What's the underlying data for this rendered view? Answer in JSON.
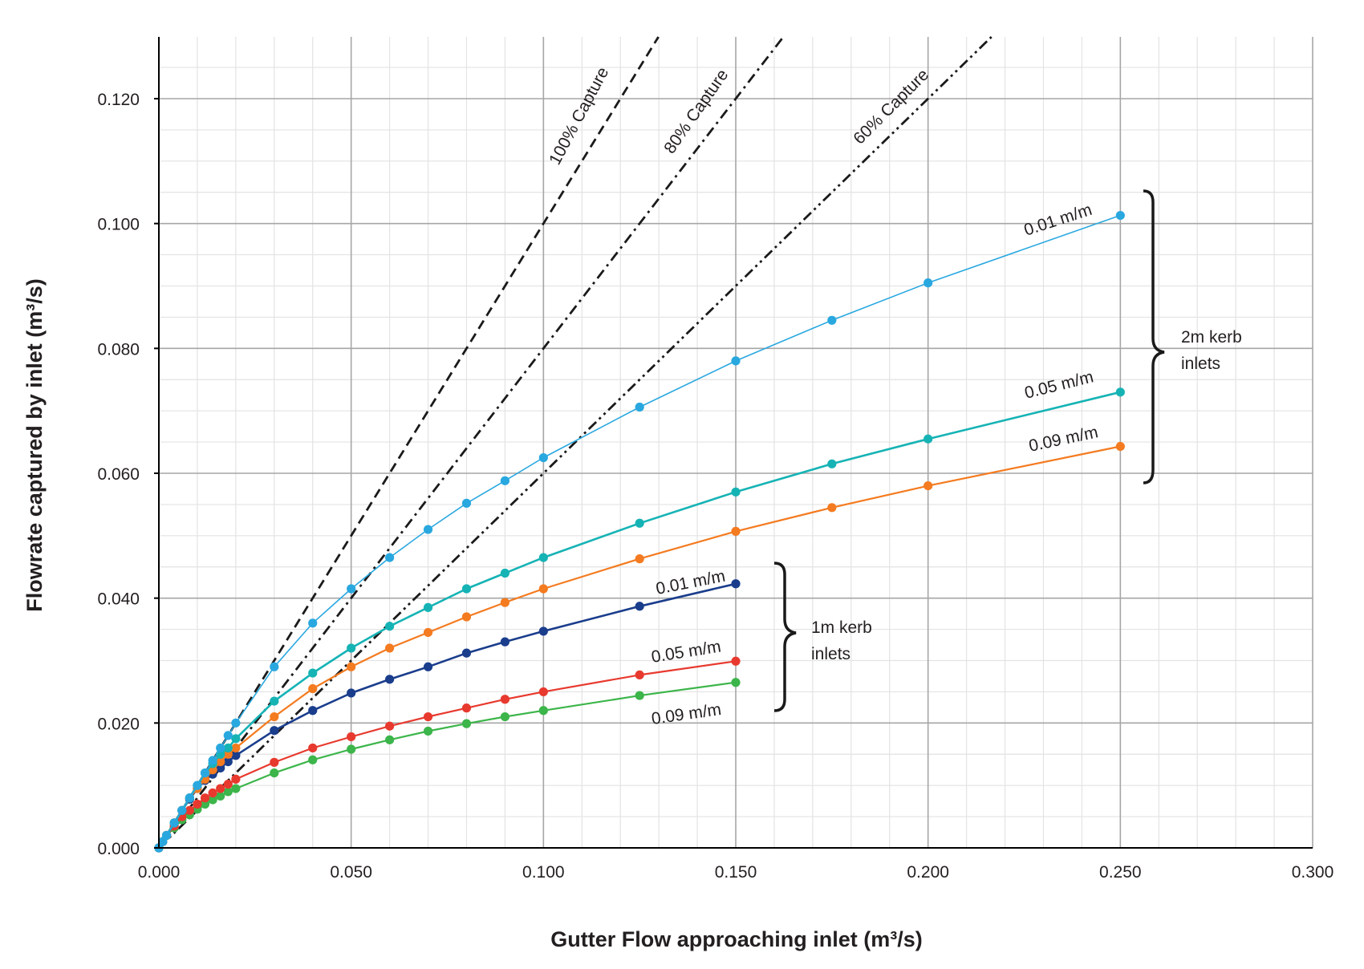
{
  "chart_data": {
    "type": "line",
    "xlabel": "Gutter Flow approaching inlet (m³/s)",
    "ylabel": "Flowrate captured by inlet (m³/s)",
    "xlim": [
      0,
      0.3
    ],
    "ylim": [
      0,
      0.13
    ],
    "x_ticks": [
      "0.000",
      "0.050",
      "0.100",
      "0.150",
      "0.200",
      "0.250",
      "0.300"
    ],
    "y_ticks": [
      "0.000",
      "0.020",
      "0.040",
      "0.060",
      "0.080",
      "0.100",
      "0.120"
    ],
    "grid": true,
    "reference_lines": [
      {
        "label": "100% Capture",
        "slope": 1.0,
        "style": "dashed",
        "color": "#1a1a1a"
      },
      {
        "label": "80% Capture",
        "slope": 0.8,
        "style": "dash-dot",
        "color": "#1a1a1a"
      },
      {
        "label": "60% Capture",
        "slope": 0.6,
        "style": "dash-dot-dot",
        "color": "#1a1a1a"
      }
    ],
    "series": [
      {
        "name": "0.01 m/m",
        "group": "2m kerb inlets",
        "color": "#29a8e0",
        "x": [
          0,
          0.001,
          0.002,
          0.004,
          0.006,
          0.008,
          0.01,
          0.012,
          0.014,
          0.016,
          0.018,
          0.02,
          0.03,
          0.04,
          0.05,
          0.06,
          0.07,
          0.08,
          0.09,
          0.1,
          0.125,
          0.15,
          0.175,
          0.2,
          0.25
        ],
        "y": [
          0,
          0.001,
          0.002,
          0.004,
          0.006,
          0.008,
          0.01,
          0.012,
          0.014,
          0.016,
          0.018,
          0.02,
          0.029,
          0.036,
          0.0415,
          0.0465,
          0.051,
          0.0552,
          0.0588,
          0.0625,
          0.0706,
          0.078,
          0.0845,
          0.0905,
          0.1013
        ]
      },
      {
        "name": "0.05 m/m",
        "group": "2m kerb inlets",
        "color": "#16b3b5",
        "x": [
          0,
          0.001,
          0.002,
          0.004,
          0.006,
          0.008,
          0.01,
          0.012,
          0.014,
          0.016,
          0.018,
          0.02,
          0.03,
          0.04,
          0.05,
          0.06,
          0.07,
          0.08,
          0.09,
          0.1,
          0.125,
          0.15,
          0.175,
          0.2,
          0.25
        ],
        "y": [
          0,
          0.001,
          0.002,
          0.004,
          0.006,
          0.008,
          0.01,
          0.012,
          0.0135,
          0.015,
          0.016,
          0.0175,
          0.0235,
          0.028,
          0.032,
          0.0355,
          0.0385,
          0.0415,
          0.044,
          0.0465,
          0.052,
          0.057,
          0.0615,
          0.0655,
          0.073
        ]
      },
      {
        "name": "0.09 m/m",
        "group": "2m kerb inlets",
        "color": "#f47b20",
        "x": [
          0,
          0.001,
          0.002,
          0.004,
          0.006,
          0.008,
          0.01,
          0.012,
          0.014,
          0.016,
          0.018,
          0.02,
          0.03,
          0.04,
          0.05,
          0.06,
          0.07,
          0.08,
          0.09,
          0.1,
          0.125,
          0.15,
          0.175,
          0.2,
          0.25
        ],
        "y": [
          0,
          0.001,
          0.002,
          0.004,
          0.006,
          0.008,
          0.0095,
          0.011,
          0.0125,
          0.0138,
          0.015,
          0.016,
          0.021,
          0.0255,
          0.029,
          0.032,
          0.0345,
          0.037,
          0.0393,
          0.0415,
          0.0463,
          0.0507,
          0.0545,
          0.058,
          0.0643
        ]
      },
      {
        "name": "0.01 m/m",
        "group": "1m kerb inlets",
        "color": "#1a3d8c",
        "x": [
          0,
          0.001,
          0.002,
          0.004,
          0.006,
          0.008,
          0.01,
          0.012,
          0.014,
          0.016,
          0.018,
          0.02,
          0.03,
          0.04,
          0.05,
          0.06,
          0.07,
          0.08,
          0.09,
          0.1,
          0.125,
          0.15
        ],
        "y": [
          0,
          0.001,
          0.002,
          0.004,
          0.006,
          0.0078,
          0.0095,
          0.0108,
          0.0118,
          0.0128,
          0.0138,
          0.0148,
          0.0188,
          0.022,
          0.0248,
          0.027,
          0.029,
          0.0312,
          0.033,
          0.0347,
          0.0387,
          0.0423
        ]
      },
      {
        "name": "0.05 m/m",
        "group": "1m kerb inlets",
        "color": "#e8392e",
        "x": [
          0,
          0.001,
          0.002,
          0.004,
          0.006,
          0.008,
          0.01,
          0.012,
          0.014,
          0.016,
          0.018,
          0.02,
          0.03,
          0.04,
          0.05,
          0.06,
          0.07,
          0.08,
          0.09,
          0.1,
          0.125,
          0.15
        ],
        "y": [
          0,
          0.001,
          0.002,
          0.0035,
          0.005,
          0.006,
          0.007,
          0.008,
          0.0088,
          0.0095,
          0.0102,
          0.011,
          0.0137,
          0.016,
          0.0178,
          0.0195,
          0.021,
          0.0224,
          0.0238,
          0.025,
          0.0277,
          0.0299
        ]
      },
      {
        "name": "0.09 m/m",
        "group": "1m kerb inlets",
        "color": "#3cb54a",
        "x": [
          0,
          0.001,
          0.002,
          0.004,
          0.006,
          0.008,
          0.01,
          0.012,
          0.014,
          0.016,
          0.018,
          0.02,
          0.03,
          0.04,
          0.05,
          0.06,
          0.07,
          0.08,
          0.09,
          0.1,
          0.125,
          0.15
        ],
        "y": [
          0,
          0.001,
          0.002,
          0.0032,
          0.0045,
          0.0053,
          0.0062,
          0.007,
          0.0077,
          0.0083,
          0.009,
          0.0095,
          0.012,
          0.0141,
          0.0158,
          0.0173,
          0.0187,
          0.0199,
          0.021,
          0.022,
          0.0244,
          0.0265
        ]
      }
    ],
    "annotations": {
      "label_100": "100% Capture",
      "label_80": "80% Capture",
      "label_60": "60% Capture",
      "series_labels": [
        "0.01 m/m",
        "0.05 m/m",
        "0.09 m/m",
        "0.01 m/m",
        "0.05 m/m",
        "0.09 m/m"
      ],
      "group_2m_line1": "2m kerb",
      "group_2m_line2": "inlets",
      "group_1m_line1": "1m kerb",
      "group_1m_line2": "inlets"
    }
  }
}
